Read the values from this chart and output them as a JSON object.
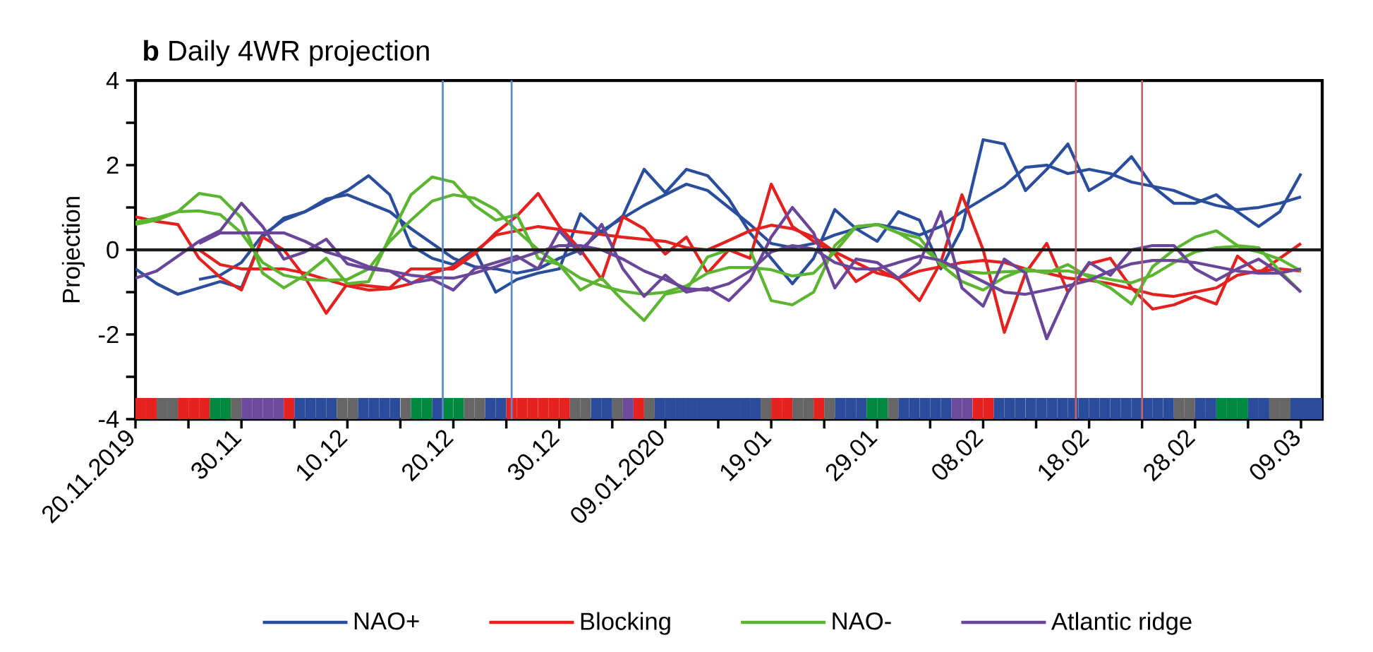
{
  "chart_data": {
    "type": "line",
    "title": "**b** Daily 4WR projection",
    "ylabel": "Projection",
    "xlim": [
      "2019-11-20",
      "2020-03-11"
    ],
    "ylim": [
      -4,
      4
    ],
    "xticks": [
      {
        "value": "2019-11-20",
        "label": "20.11.2019"
      },
      {
        "value": "2019-11-25",
        "label": null
      },
      {
        "value": "2019-11-30",
        "label": "30.11"
      },
      {
        "value": "2019-12-05",
        "label": null
      },
      {
        "value": "2019-12-10",
        "label": "10.12"
      },
      {
        "value": "2019-12-15",
        "label": null
      },
      {
        "value": "2019-12-20",
        "label": "20.12"
      },
      {
        "value": "2019-12-25",
        "label": null
      },
      {
        "value": "2019-12-30",
        "label": "30.12"
      },
      {
        "value": "2020-01-04",
        "label": null
      },
      {
        "value": "2020-01-09",
        "label": "09.01.2020"
      },
      {
        "value": "2020-01-14",
        "label": null
      },
      {
        "value": "2020-01-19",
        "label": "19.01"
      },
      {
        "value": "2020-01-24",
        "label": null
      },
      {
        "value": "2020-01-29",
        "label": "29.01"
      },
      {
        "value": "2020-02-03",
        "label": null
      },
      {
        "value": "2020-02-08",
        "label": "08.02"
      },
      {
        "value": "2020-02-13",
        "label": null
      },
      {
        "value": "2020-02-18",
        "label": "18.02"
      },
      {
        "value": "2020-02-23",
        "label": null
      },
      {
        "value": "2020-02-28",
        "label": "28.02"
      },
      {
        "value": "2020-03-04",
        "label": null
      },
      {
        "value": "2020-03-09",
        "label": "09.03"
      }
    ],
    "yticks": [
      -4,
      {
        "value": -3,
        "label": null
      },
      -2,
      {
        "value": -1,
        "label": null
      },
      0,
      {
        "value": 1,
        "label": null
      },
      2,
      {
        "value": 3,
        "label": null
      },
      4
    ],
    "legend": "bottom",
    "x": [
      "2019-11-20",
      "2019-11-22",
      "2019-11-24",
      "2019-11-26",
      "2019-11-28",
      "2019-11-30",
      "2019-12-02",
      "2019-12-04",
      "2019-12-06",
      "2019-12-08",
      "2019-12-10",
      "2019-12-12",
      "2019-12-14",
      "2019-12-16",
      "2019-12-18",
      "2019-12-20",
      "2019-12-22",
      "2019-12-24",
      "2019-12-26",
      "2019-12-28",
      "2019-12-30",
      "2020-01-01",
      "2020-01-03",
      "2020-01-05",
      "2020-01-07",
      "2020-01-09",
      "2020-01-11",
      "2020-01-13",
      "2020-01-15",
      "2020-01-17",
      "2020-01-19",
      "2020-01-21",
      "2020-01-23",
      "2020-01-25",
      "2020-01-27",
      "2020-01-29",
      "2020-01-31",
      "2020-02-02",
      "2020-02-04",
      "2020-02-06",
      "2020-02-08",
      "2020-02-10",
      "2020-02-12",
      "2020-02-14",
      "2020-02-16",
      "2020-02-18",
      "2020-02-20",
      "2020-02-22",
      "2020-02-24",
      "2020-02-26",
      "2020-02-28",
      "2020-03-01",
      "2020-03-03",
      "2020-03-05",
      "2020-03-07",
      "2020-03-09"
    ],
    "series": [
      {
        "type": "bar",
        "x": [
          "2019-11-20",
          "2019-11-21",
          "2019-11-22",
          "2019-11-23",
          "2019-11-24",
          "2019-11-25",
          "2019-11-26",
          "2019-11-27",
          "2019-11-28",
          "2019-11-29",
          "2019-11-30",
          "2019-12-01",
          "2019-12-02",
          "2019-12-03",
          "2019-12-04",
          "2019-12-05",
          "2019-12-06",
          "2019-12-07",
          "2019-12-08",
          "2019-12-09",
          "2019-12-10",
          "2019-12-11",
          "2019-12-12",
          "2019-12-13",
          "2019-12-14",
          "2019-12-15",
          "2019-12-16",
          "2019-12-17",
          "2019-12-18",
          "2019-12-19",
          "2019-12-20",
          "2019-12-21",
          "2019-12-22",
          "2019-12-23",
          "2019-12-24",
          "2019-12-25",
          "2019-12-26",
          "2019-12-27",
          "2019-12-28",
          "2019-12-29",
          "2019-12-30",
          "2019-12-31",
          "2020-01-01",
          "2020-01-02",
          "2020-01-03",
          "2020-01-04",
          "2020-01-05",
          "2020-01-06",
          "2020-01-07",
          "2020-01-08",
          "2020-01-09",
          "2020-01-10",
          "2020-01-11",
          "2020-01-12",
          "2020-01-13",
          "2020-01-14",
          "2020-01-15",
          "2020-01-16",
          "2020-01-17",
          "2020-01-18",
          "2020-01-19",
          "2020-01-20",
          "2020-01-21",
          "2020-01-22",
          "2020-01-23",
          "2020-01-24",
          "2020-01-25",
          "2020-01-26",
          "2020-01-27",
          "2020-01-28",
          "2020-01-29",
          "2020-01-30",
          "2020-01-31",
          "2020-02-01",
          "2020-02-02",
          "2020-02-03",
          "2020-02-04",
          "2020-02-05",
          "2020-02-06",
          "2020-02-07",
          "2020-02-08",
          "2020-02-09",
          "2020-02-10",
          "2020-02-11",
          "2020-02-12",
          "2020-02-13",
          "2020-02-14",
          "2020-02-15",
          "2020-02-16",
          "2020-02-17",
          "2020-02-18",
          "2020-02-19",
          "2020-02-20",
          "2020-02-21",
          "2020-02-22",
          "2020-02-23",
          "2020-02-24",
          "2020-02-25",
          "2020-02-26",
          "2020-02-27",
          "2020-02-28",
          "2020-02-29",
          "2020-03-01",
          "2020-03-02",
          "2020-03-03",
          "2020-03-04",
          "2020-03-05",
          "2020-03-06",
          "2020-03-07",
          "2020-03-08",
          "2020-03-09",
          "2020-03-10"
        ],
        "base": [
          -4,
          -4,
          -4,
          -4,
          -4,
          -4,
          -4,
          -4,
          -4,
          -4,
          -4,
          -4,
          -4,
          -4,
          -4,
          -4,
          -4,
          -4,
          -4,
          -4,
          -4,
          -4,
          -4,
          -4,
          -4,
          -4,
          -4,
          -4,
          -4,
          -4,
          -4,
          -4,
          -4,
          -4,
          -4,
          -4,
          -4,
          -4,
          -4,
          -4,
          -4,
          -4,
          -4,
          -4,
          -4,
          -4,
          -4,
          -4,
          -4,
          -4,
          -4,
          -4,
          -4,
          -4,
          -4,
          -4,
          -4,
          -4,
          -4,
          -4,
          -4,
          -4,
          -4,
          -4,
          -4,
          -4,
          -4,
          -4,
          -4,
          -4,
          -4,
          -4,
          -4,
          -4,
          -4,
          -4,
          -4,
          -4,
          -4,
          -4,
          -4,
          -4,
          -4,
          -4,
          -4,
          -4,
          -4,
          -4,
          -4,
          -4,
          -4,
          -4,
          -4,
          -4,
          -4,
          -4,
          -4,
          -4,
          -4,
          -4,
          -4,
          -4,
          -4,
          -4,
          -4,
          -4,
          -4,
          -4,
          -4,
          -4,
          -4,
          -4
        ],
        "values": [
          0.5,
          0.5,
          0.5,
          0.5,
          0.5,
          0.5,
          0.5,
          0.5,
          0.5,
          0.5,
          0.5,
          0.5,
          0.5,
          0.5,
          0.5,
          0.5,
          0.5,
          0.5,
          0.5,
          0.5,
          0.5,
          0.5,
          0.5,
          0.5,
          0.5,
          0.5,
          0.5,
          0.5,
          0.5,
          0.5,
          0.5,
          0.5,
          0.5,
          0.5,
          0.5,
          0.5,
          0.5,
          0.5,
          0.5,
          0.5,
          0.5,
          0.5,
          0.5,
          0.5,
          0.5,
          0.5,
          0.5,
          0.5,
          0.5,
          0.5,
          0.5,
          0.5,
          0.5,
          0.5,
          0.5,
          0.5,
          0.5,
          0.5,
          0.5,
          0.5,
          0.5,
          0.5,
          0.5,
          0.5,
          0.5,
          0.5,
          0.5,
          0.5,
          0.5,
          0.5,
          0.5,
          0.5,
          0.5,
          0.5,
          0.5,
          0.5,
          0.5,
          0.5,
          0.5,
          0.5,
          0.5,
          0.5,
          0.5,
          0.5,
          0.5,
          0.5,
          0.5,
          0.5,
          0.5,
          0.5,
          0.5,
          0.5,
          0.5,
          0.5,
          0.5,
          0.5,
          0.5,
          0.5,
          0.5,
          0.5,
          0.5,
          0.5,
          0.5,
          0.5,
          0.5,
          0.5,
          0.5,
          0.5,
          0.5,
          0.5,
          0.5,
          0.5
        ],
        "colors": [
          "#e42320",
          "#e42320",
          "#666666",
          "#666666",
          "#e42320",
          "#e42320",
          "#e42320",
          "#00893e",
          "#00893e",
          "#666666",
          "#6d4a9c",
          "#6d4a9c",
          "#6d4a9c",
          "#6d4a9c",
          "#e42320",
          "#2b4c9b",
          "#2b4c9b",
          "#2b4c9b",
          "#2b4c9b",
          "#666666",
          "#666666",
          "#2b4c9b",
          "#2b4c9b",
          "#2b4c9b",
          "#2b4c9b",
          "#666666",
          "#00893e",
          "#00893e",
          "#2b4c9b",
          "#00893e",
          "#00893e",
          "#666666",
          "#666666",
          "#2b4c9b",
          "#2b4c9b",
          "#e42320",
          "#e42320",
          "#e42320",
          "#e42320",
          "#e42320",
          "#e42320",
          "#666666",
          "#666666",
          "#2b4c9b",
          "#2b4c9b",
          "#666666",
          "#6d4a9c",
          "#e42320",
          "#666666",
          "#2b4c9b",
          "#2b4c9b",
          "#2b4c9b",
          "#2b4c9b",
          "#2b4c9b",
          "#2b4c9b",
          "#2b4c9b",
          "#2b4c9b",
          "#2b4c9b",
          "#2b4c9b",
          "#666666",
          "#e42320",
          "#e42320",
          "#666666",
          "#666666",
          "#e42320",
          "#666666",
          "#2b4c9b",
          "#2b4c9b",
          "#2b4c9b",
          "#00893e",
          "#00893e",
          "#666666",
          "#2b4c9b",
          "#2b4c9b",
          "#2b4c9b",
          "#2b4c9b",
          "#2b4c9b",
          "#6d4a9c",
          "#6d4a9c",
          "#e42320",
          "#e42320",
          "#2b4c9b",
          "#2b4c9b",
          "#2b4c9b",
          "#2b4c9b",
          "#2b4c9b",
          "#2b4c9b",
          "#2b4c9b",
          "#2b4c9b",
          "#2b4c9b",
          "#2b4c9b",
          "#2b4c9b",
          "#2b4c9b",
          "#2b4c9b",
          "#2b4c9b",
          "#2b4c9b",
          "#2b4c9b",
          "#2b4c9b",
          "#666666",
          "#666666",
          "#2b4c9b",
          "#2b4c9b",
          "#00893e",
          "#00893e",
          "#00893e",
          "#2b4c9b",
          "#2b4c9b",
          "#666666",
          "#666666",
          "#2b4c9b",
          "#2b4c9b",
          "#2b4c9b"
        ]
      },
      {
        "name": "NAO+",
        "color": "#2a4d9c",
        "values": [
          -0.45,
          -0.8,
          -1.05,
          -0.9,
          -0.75,
          -0.9,
          0.3,
          0.75,
          0.9,
          1.15,
          1.4,
          1.75,
          1.3,
          0.1,
          -0.2,
          -0.35,
          0.0,
          -1.0,
          -0.7,
          -0.55,
          -0.45,
          0.85,
          0.4,
          0.8,
          1.9,
          1.35,
          1.9,
          1.75,
          1.2,
          0.4,
          -0.2,
          -0.8,
          -0.2,
          0.95,
          0.5,
          0.2,
          0.9,
          0.7,
          -0.45,
          0.5,
          2.6,
          2.5,
          1.4,
          1.9,
          2.5,
          1.4,
          1.7,
          2.2,
          1.5,
          1.1,
          1.1,
          1.3,
          0.9,
          0.55,
          0.9,
          1.8
        ]
      },
      {
        "color": "#2a4d9c",
        "values": [
          null,
          null,
          null,
          -0.7,
          -0.6,
          -0.3,
          0.35,
          0.7,
          0.9,
          1.2,
          1.3,
          1.1,
          0.9,
          0.5,
          0.15,
          -0.2,
          -0.4,
          -0.45,
          -0.55,
          -0.45,
          -0.2,
          0.0,
          0.45,
          0.75,
          1.05,
          1.3,
          1.55,
          1.4,
          1.0,
          0.6,
          0.15,
          0.05,
          0.15,
          0.35,
          0.5,
          0.6,
          0.5,
          0.35,
          0.55,
          0.9,
          1.2,
          1.5,
          1.95,
          2.0,
          1.8,
          1.9,
          1.8,
          1.6,
          1.5,
          1.4,
          1.2,
          1.05,
          0.95,
          1.0,
          1.1,
          1.25
        ]
      },
      {
        "name": "Blocking",
        "color": "#e3211f",
        "values": [
          0.78,
          0.67,
          0.6,
          -0.2,
          -0.65,
          -0.95,
          0.3,
          0.0,
          -0.65,
          -1.5,
          -0.8,
          -0.85,
          -0.9,
          -0.45,
          -0.45,
          -0.45,
          -0.1,
          0.4,
          0.8,
          1.33,
          0.55,
          0.0,
          -0.7,
          0.78,
          0.5,
          -0.1,
          0.3,
          -0.55,
          0.0,
          -0.2,
          1.55,
          0.55,
          0.2,
          -0.1,
          -0.75,
          -0.45,
          -0.7,
          -1.2,
          -0.3,
          1.3,
          0.0,
          -1.95,
          -0.55,
          0.15,
          -1.0,
          -0.33,
          -0.2,
          -0.9,
          -1.4,
          -1.3,
          -1.1,
          -1.28,
          -0.15,
          -0.55,
          -0.2,
          0.15
        ]
      },
      {
        "color": "#e3211f",
        "values": [
          null,
          null,
          null,
          0.0,
          -0.35,
          -0.45,
          -0.45,
          -0.45,
          -0.55,
          -0.7,
          -0.85,
          -0.95,
          -0.92,
          -0.8,
          -0.55,
          -0.4,
          -0.05,
          0.35,
          0.45,
          0.55,
          0.48,
          0.42,
          0.36,
          0.3,
          0.25,
          0.2,
          0.05,
          0.0,
          0.22,
          0.45,
          0.58,
          0.5,
          0.3,
          -0.05,
          -0.3,
          -0.55,
          -0.67,
          -0.5,
          -0.4,
          -0.3,
          -0.25,
          -0.3,
          -0.45,
          -0.55,
          -0.67,
          -0.72,
          -0.8,
          -0.92,
          -1.05,
          -1.1,
          -1.0,
          -0.9,
          -0.6,
          -0.5,
          -0.45,
          -0.5
        ]
      },
      {
        "name": "NAO-",
        "color": "#5cb531",
        "values": [
          0.6,
          0.7,
          0.9,
          1.33,
          1.25,
          0.75,
          -0.55,
          -0.9,
          -0.6,
          -0.2,
          -0.8,
          -0.75,
          0.3,
          1.3,
          1.72,
          1.6,
          1.05,
          0.7,
          0.83,
          -0.2,
          -0.35,
          -0.95,
          -0.67,
          -1.2,
          -1.67,
          -1.05,
          -0.95,
          -0.17,
          0.0,
          0.0,
          -1.2,
          -1.3,
          -1.0,
          0.1,
          0.55,
          0.6,
          0.4,
          0.28,
          -0.35,
          -0.75,
          -0.95,
          -0.65,
          -0.45,
          -0.55,
          -0.35,
          -0.65,
          -0.9,
          -1.28,
          -0.4,
          0.0,
          0.3,
          0.45,
          0.1,
          0.05,
          -0.5,
          -1.0
        ]
      },
      {
        "color": "#5cb531",
        "values": [
          0.65,
          0.75,
          0.9,
          0.92,
          0.83,
          0.4,
          -0.3,
          -0.6,
          -0.7,
          -0.72,
          -0.7,
          -0.45,
          0.2,
          0.7,
          1.15,
          1.3,
          1.22,
          0.95,
          0.45,
          0.0,
          -0.35,
          -0.67,
          -0.85,
          -0.98,
          -1.05,
          -1.0,
          -0.85,
          -0.55,
          -0.42,
          -0.42,
          -0.47,
          -0.62,
          -0.55,
          -0.05,
          0.55,
          0.6,
          0.4,
          0.1,
          -0.3,
          -0.5,
          -0.55,
          -0.52,
          -0.5,
          -0.5,
          -0.5,
          -0.6,
          -0.7,
          -0.78,
          -0.6,
          -0.3,
          -0.05,
          0.05,
          0.08,
          -0.05,
          -0.22,
          -0.5
        ]
      },
      {
        "name": "Atlantic ridge",
        "color": "#6a4699",
        "values": [
          -0.67,
          -0.5,
          -0.15,
          0.2,
          0.45,
          1.1,
          0.55,
          -0.22,
          -0.05,
          0.25,
          -0.33,
          -0.45,
          -0.5,
          -0.78,
          -0.7,
          -0.95,
          -0.45,
          -0.3,
          -0.15,
          -0.45,
          0.45,
          -0.1,
          0.6,
          -0.45,
          -1.1,
          -0.6,
          -1.0,
          -0.9,
          -1.2,
          -0.7,
          0.3,
          1.0,
          0.4,
          -0.9,
          -0.22,
          -0.3,
          -0.67,
          -0.3,
          0.9,
          -0.9,
          -1.33,
          -0.22,
          -0.55,
          -2.1,
          -1.0,
          -0.3,
          -0.6,
          0.0,
          0.1,
          0.1,
          -0.45,
          -0.72,
          -0.45,
          -0.22,
          -0.55,
          -1.0
        ]
      },
      {
        "color": "#6a4699",
        "values": [
          null,
          null,
          null,
          0.15,
          0.4,
          0.4,
          0.4,
          0.4,
          0.2,
          -0.05,
          -0.2,
          -0.4,
          -0.5,
          -0.6,
          -0.65,
          -0.67,
          -0.55,
          -0.4,
          -0.22,
          -0.05,
          0.1,
          0.1,
          0.0,
          -0.22,
          -0.5,
          -0.7,
          -0.92,
          -0.95,
          -0.8,
          -0.5,
          -0.05,
          0.1,
          0.02,
          -0.3,
          -0.45,
          -0.45,
          -0.3,
          -0.15,
          -0.25,
          -0.5,
          -0.75,
          -1.0,
          -1.05,
          -0.95,
          -0.85,
          -0.72,
          -0.5,
          -0.33,
          -0.25,
          -0.25,
          -0.3,
          -0.4,
          -0.5,
          -0.55,
          -0.55,
          -0.45
        ]
      }
    ],
    "ref_lines": [
      {
        "axis": "y",
        "value": 0,
        "color": "#1a1a1a"
      },
      {
        "axis": "x",
        "value": "2019-12-19",
        "color": "#5b8ac6"
      },
      {
        "axis": "x",
        "value": "2019-12-25T12:00",
        "color": "#5b8ac6"
      },
      {
        "axis": "x",
        "value": "2020-02-16T18:00",
        "color": "#c0666b"
      },
      {
        "axis": "x",
        "value": "2020-02-23",
        "color": "#c0666b"
      }
    ]
  }
}
